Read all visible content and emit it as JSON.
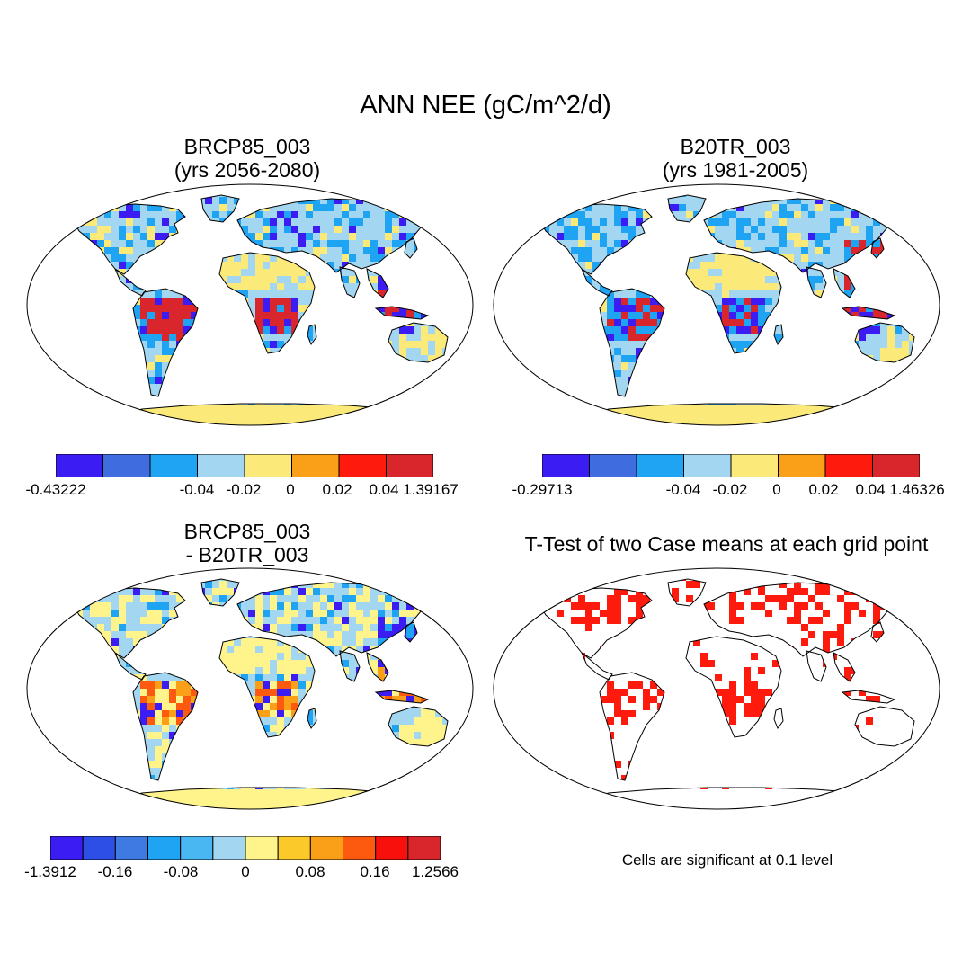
{
  "title": "ANN NEE (gC/m^2/d)",
  "panels": {
    "top_left": {
      "title": [
        "BRCP85_003",
        "(yrs 2056-2080)"
      ],
      "colorbar": {
        "colors": [
          "#3b1cf2",
          "#3f6de0",
          "#1ea4f3",
          "#a3d6f0",
          "#fbe97a",
          "#f99f18",
          "#ff1a0e",
          "#d8262c"
        ],
        "labels": [
          "-0.43222",
          "-0.04",
          "-0.02",
          "0",
          "0.02",
          "0.04",
          "1.39167"
        ]
      }
    },
    "top_right": {
      "title": [
        "B20TR_003",
        "(yrs 1981-2005)"
      ],
      "colorbar": {
        "colors": [
          "#3b1cf2",
          "#3f6de0",
          "#1ea4f3",
          "#a3d6f0",
          "#fbe97a",
          "#f99f18",
          "#ff1a0e",
          "#d8262c"
        ],
        "labels": [
          "-0.29713",
          "-0.04",
          "-0.02",
          "0",
          "0.02",
          "0.04",
          "1.46326"
        ]
      }
    },
    "bottom_left": {
      "title": [
        "BRCP85_003",
        "- B20TR_003"
      ],
      "colorbar": {
        "colors": [
          "#3b1cf2",
          "#2d4fe6",
          "#3f7ae2",
          "#1ea4f3",
          "#49b8f2",
          "#a3d6f0",
          "#fff38c",
          "#fbc92a",
          "#f9a018",
          "#fd5a10",
          "#f8110c",
          "#d8262c"
        ],
        "labels": [
          "-1.3912",
          "-0.16",
          "-0.08",
          "0",
          "0.08",
          "0.16",
          "1.2566"
        ]
      }
    },
    "bottom_right": {
      "title": [
        "T-Test of two Case means at each grid point"
      ],
      "note": "Cells are significant at 0.1 level"
    }
  },
  "colors": {
    "land_yellow": "#fbe97a",
    "land_lightblue": "#a3d6f0",
    "land_blue": "#1ea4f3",
    "land_darkblue": "#3b1cf2",
    "land_red": "#d8262c",
    "significant_red": "#ff1a0e"
  }
}
